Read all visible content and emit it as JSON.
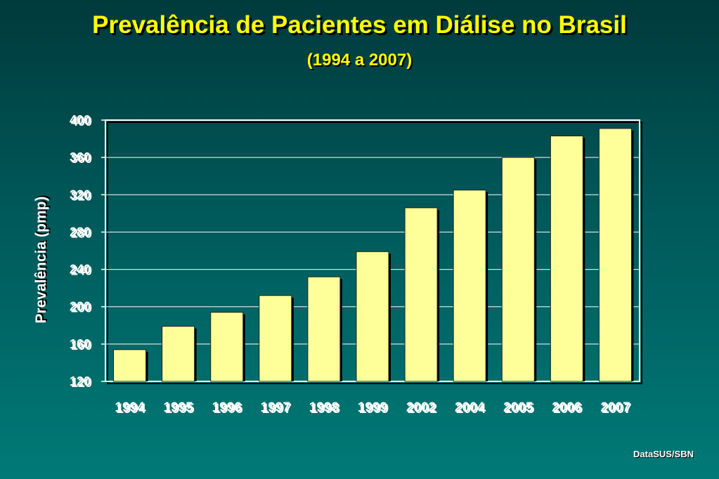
{
  "chart_data": {
    "type": "bar",
    "title": "Prevalência de Pacientes em Diálise no Brasil",
    "subtitle": "(1994 a 2007)",
    "xlabel": "",
    "ylabel": "Prevalência (pmp)",
    "ylim": [
      120,
      400
    ],
    "yticks": [
      120,
      160,
      200,
      240,
      280,
      320,
      360,
      400
    ],
    "categories": [
      "1994",
      "1995",
      "1996",
      "1997",
      "1998",
      "1999",
      "2002",
      "2004",
      "2005",
      "2006",
      "2007"
    ],
    "values": [
      154,
      179,
      194,
      212,
      232,
      259,
      306,
      325,
      360,
      383,
      391
    ],
    "grid": true,
    "legend": "none",
    "bar_color": "#ffff99"
  },
  "source": "DataSUS/SBN"
}
